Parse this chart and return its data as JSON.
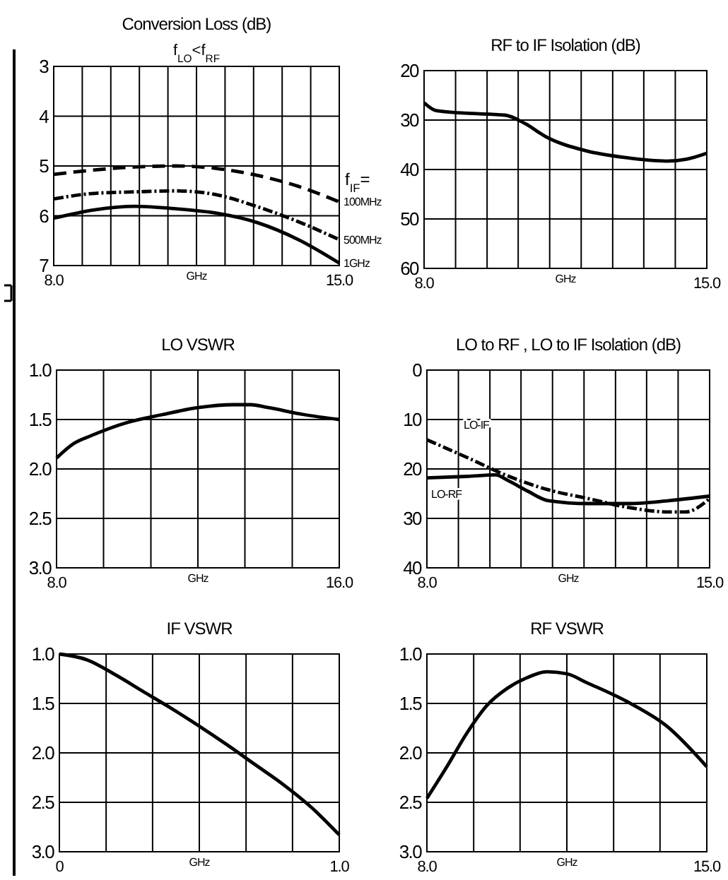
{
  "chart_data": [
    {
      "type": "line",
      "title": "Conversion Loss (dB)",
      "subtitle": "f$_{LO}$<f$_{RF}$",
      "xlabel": "GHz",
      "legend_title": "f$_{IF}$=",
      "grid": true,
      "x": [
        8,
        9,
        10,
        11,
        12,
        13,
        14,
        15
      ],
      "xlim": [
        8,
        15
      ],
      "xticks": [
        {
          "value": 8,
          "label": "8.0"
        },
        {
          "value": 8.7,
          "label": null
        },
        {
          "value": 9.4,
          "label": null
        },
        {
          "value": 10.1,
          "label": null
        },
        {
          "value": 10.8,
          "label": null
        },
        {
          "value": 11.5,
          "label": null
        },
        {
          "value": 12.2,
          "label": null
        },
        {
          "value": 12.9,
          "label": null
        },
        {
          "value": 13.6,
          "label": null
        },
        {
          "value": 14.3,
          "label": null
        },
        {
          "value": 15,
          "label": "15.0"
        }
      ],
      "ylim": [
        7,
        3
      ],
      "yticks": [
        3,
        4,
        5,
        6,
        7
      ],
      "series": [
        {
          "name": "100MHz",
          "color": "#000000",
          "line_style": "dashed",
          "values": [
            5.17,
            5.08,
            5.02,
            5.0,
            5.05,
            5.19,
            5.41,
            5.72
          ]
        },
        {
          "name": "500MHz",
          "color": "#000000",
          "line_style": "dotted",
          "values": [
            5.66,
            5.55,
            5.52,
            5.5,
            5.58,
            5.82,
            6.12,
            6.48
          ]
        },
        {
          "name": "1GHz",
          "color": "#000000",
          "line_style": "solid",
          "values": [
            6.05,
            5.88,
            5.81,
            5.86,
            5.95,
            6.14,
            6.48,
            6.95
          ]
        }
      ]
    },
    {
      "type": "line",
      "title": "RF to IF Isolation (dB)",
      "xlabel": "GHz",
      "grid": true,
      "xlim": [
        8,
        15
      ],
      "xticks": [
        {
          "value": 8,
          "label": "8.0"
        },
        {
          "value": 8.78,
          "label": null
        },
        {
          "value": 9.56,
          "label": null
        },
        {
          "value": 10.33,
          "label": null
        },
        {
          "value": 11.11,
          "label": null
        },
        {
          "value": 11.89,
          "label": null
        },
        {
          "value": 12.67,
          "label": null
        },
        {
          "value": 13.44,
          "label": null
        },
        {
          "value": 14.22,
          "label": null
        },
        {
          "value": 15,
          "label": "15.0"
        }
      ],
      "ylim": [
        60,
        20
      ],
      "yticks": [
        20,
        30,
        40,
        50,
        60
      ],
      "series": [
        {
          "color": "#000000",
          "x": [
            8,
            8.3,
            9,
            10,
            10.5,
            11,
            12,
            13,
            14,
            14.5,
            15
          ],
          "values": [
            26.5,
            28.1,
            28.6,
            29,
            30.7,
            33.3,
            36.2,
            37.6,
            38.3,
            37.9,
            36.7
          ]
        }
      ]
    },
    {
      "type": "line",
      "title": "LO VSWR",
      "xlabel": "GHz",
      "grid": true,
      "xlim": [
        8,
        16
      ],
      "xticks": [
        {
          "value": 8,
          "label": "8.0"
        },
        {
          "value": 9.33,
          "label": null
        },
        {
          "value": 10.67,
          "label": null
        },
        {
          "value": 12,
          "label": null
        },
        {
          "value": 13.33,
          "label": null
        },
        {
          "value": 14.67,
          "label": null
        },
        {
          "value": 16,
          "label": "16.0"
        }
      ],
      "ylim": [
        3,
        1
      ],
      "yticks": [
        {
          "value": 1,
          "label": "1.0"
        },
        1.5,
        {
          "value": 2,
          "label": "2.0"
        },
        2.5,
        {
          "value": 3,
          "label": "3.0"
        }
      ],
      "series": [
        {
          "color": "#000000",
          "x": [
            8,
            8.5,
            9,
            10,
            11,
            12,
            13,
            13.5,
            14,
            15,
            16
          ],
          "values": [
            1.89,
            1.74,
            1.66,
            1.53,
            1.45,
            1.38,
            1.35,
            1.35,
            1.38,
            1.45,
            1.5
          ]
        }
      ]
    },
    {
      "type": "line",
      "title": "LO to RF , LO to IF Isolation (dB)",
      "xlabel": "GHz",
      "grid": true,
      "xlim": [
        8,
        15
      ],
      "xticks": [
        {
          "value": 8,
          "label": "8.0"
        },
        {
          "value": 8.78,
          "label": null
        },
        {
          "value": 9.56,
          "label": null
        },
        {
          "value": 10.33,
          "label": null
        },
        {
          "value": 11.11,
          "label": null
        },
        {
          "value": 11.89,
          "label": null
        },
        {
          "value": 12.67,
          "label": null
        },
        {
          "value": 13.44,
          "label": null
        },
        {
          "value": 14.22,
          "label": null
        },
        {
          "value": 15,
          "label": "15.0"
        }
      ],
      "ylim": [
        40,
        0
      ],
      "yticks": [
        0,
        10,
        20,
        30,
        40
      ],
      "series": [
        {
          "name": "LO-IF",
          "color": "#000000",
          "line_style": "dotted",
          "x": [
            8,
            9,
            10,
            11,
            12,
            13,
            14,
            14.4,
            15
          ],
          "values": [
            14.1,
            17.7,
            21.4,
            24.2,
            26,
            27.8,
            28.7,
            28.7,
            26
          ]
        },
        {
          "name": "LO-RF",
          "color": "#000000",
          "line_style": "solid",
          "x": [
            8,
            9,
            9.7,
            10,
            10.5,
            11,
            12,
            13,
            14,
            15
          ],
          "values": [
            21.8,
            21.5,
            21.2,
            22.3,
            24.5,
            26.4,
            27,
            27,
            26.4,
            25.5
          ]
        }
      ]
    },
    {
      "type": "line",
      "title": "IF VSWR",
      "xlabel": "GHz",
      "grid": true,
      "xlim": [
        0,
        1
      ],
      "xticks": [
        {
          "value": 0,
          "label": "0"
        },
        {
          "value": 0.167,
          "label": null
        },
        {
          "value": 0.333,
          "label": null
        },
        {
          "value": 0.5,
          "label": null
        },
        {
          "value": 0.667,
          "label": null
        },
        {
          "value": 0.833,
          "label": null
        },
        {
          "value": 1,
          "label": "1.0"
        }
      ],
      "ylim": [
        3,
        1
      ],
      "yticks": [
        {
          "value": 1,
          "label": "1.0"
        },
        1.5,
        {
          "value": 2,
          "label": "2.0"
        },
        2.5,
        {
          "value": 3,
          "label": "3.0"
        }
      ],
      "series": [
        {
          "color": "#000000",
          "x": [
            0,
            0.1,
            0.2,
            0.3,
            0.4,
            0.5,
            0.6,
            0.7,
            0.8,
            0.9,
            1
          ],
          "values": [
            1.0,
            1.06,
            1.21,
            1.38,
            1.55,
            1.73,
            1.92,
            2.12,
            2.32,
            2.55,
            2.83
          ]
        }
      ]
    },
    {
      "type": "line",
      "title": "RF VSWR",
      "xlabel": "GHz",
      "grid": true,
      "xlim": [
        8,
        15
      ],
      "xticks": [
        {
          "value": 8,
          "label": "8.0"
        },
        {
          "value": 9.17,
          "label": null
        },
        {
          "value": 10.33,
          "label": null
        },
        {
          "value": 11.5,
          "label": null
        },
        {
          "value": 12.67,
          "label": null
        },
        {
          "value": 13.83,
          "label": null
        },
        {
          "value": 15,
          "label": "15.0"
        }
      ],
      "ylim": [
        3,
        1
      ],
      "yticks": [
        {
          "value": 1,
          "label": "1.0"
        },
        1.5,
        {
          "value": 2,
          "label": "2.0"
        },
        2.5,
        {
          "value": 3,
          "label": "3.0"
        }
      ],
      "series": [
        {
          "color": "#000000",
          "x": [
            8,
            8.5,
            9,
            9.5,
            10,
            10.5,
            11,
            11.5,
            12,
            13,
            14,
            15
          ],
          "values": [
            2.46,
            2.14,
            1.8,
            1.52,
            1.35,
            1.24,
            1.18,
            1.2,
            1.29,
            1.48,
            1.73,
            2.14
          ]
        }
      ]
    }
  ]
}
